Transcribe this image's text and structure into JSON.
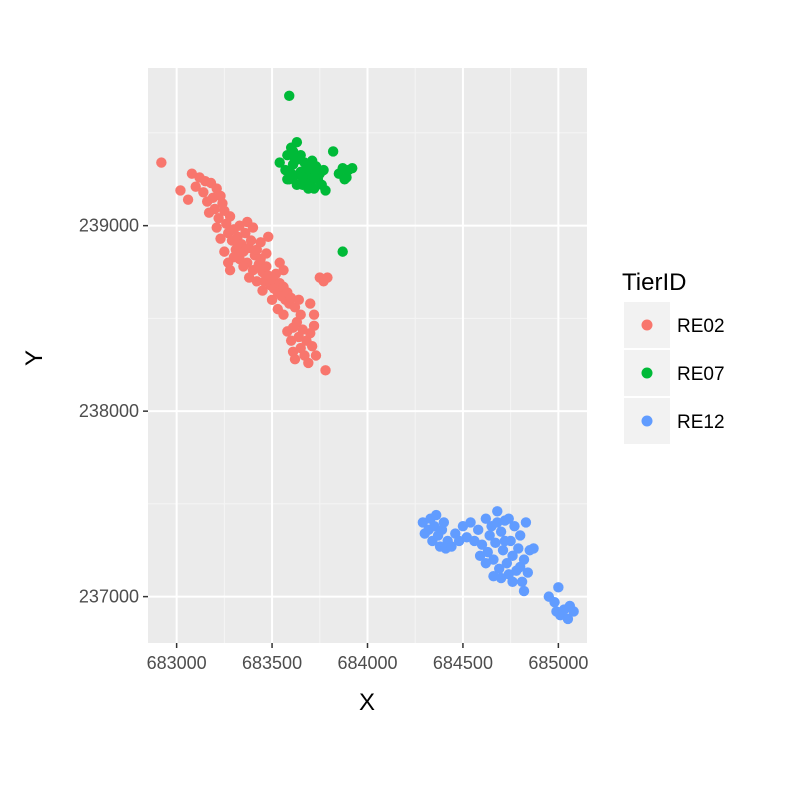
{
  "chart_data": {
    "type": "scatter",
    "title": "",
    "xlabel": "X",
    "ylabel": "Y",
    "xlim": [
      682850,
      685150
    ],
    "ylim": [
      236750,
      239850
    ],
    "x_ticks": [
      683000,
      683500,
      684000,
      684500,
      685000
    ],
    "x_tick_labels": [
      "683000",
      "683500",
      "684000",
      "684500",
      "685000"
    ],
    "y_ticks": [
      237000,
      238000,
      239000
    ],
    "y_tick_labels": [
      "237000",
      "238000",
      "239000"
    ],
    "grid": true,
    "legend": {
      "title": "TierID",
      "position": "right"
    },
    "series": [
      {
        "name": "RE02",
        "color": "#F8766D",
        "points": [
          [
            682920,
            239340
          ],
          [
            683020,
            239190
          ],
          [
            683060,
            239140
          ],
          [
            683080,
            239280
          ],
          [
            683100,
            239210
          ],
          [
            683120,
            239260
          ],
          [
            683140,
            239180
          ],
          [
            683150,
            239240
          ],
          [
            683160,
            239130
          ],
          [
            683170,
            239070
          ],
          [
            683180,
            239230
          ],
          [
            683190,
            239150
          ],
          [
            683200,
            239090
          ],
          [
            683210,
            239200
          ],
          [
            683220,
            239040
          ],
          [
            683230,
            239160
          ],
          [
            683240,
            239120
          ],
          [
            683250,
            239080
          ],
          [
            683260,
            239010
          ],
          [
            683270,
            238960
          ],
          [
            683280,
            239050
          ],
          [
            683290,
            238920
          ],
          [
            683300,
            238980
          ],
          [
            683310,
            238870
          ],
          [
            683320,
            238940
          ],
          [
            683330,
            238820
          ],
          [
            683340,
            238900
          ],
          [
            683350,
            238860
          ],
          [
            683360,
            238960
          ],
          [
            683370,
            238800
          ],
          [
            683380,
            238880
          ],
          [
            683390,
            238920
          ],
          [
            683400,
            238760
          ],
          [
            683410,
            238840
          ],
          [
            683420,
            238870
          ],
          [
            683430,
            238790
          ],
          [
            683440,
            238820
          ],
          [
            683450,
            238750
          ],
          [
            683460,
            238700
          ],
          [
            683470,
            238780
          ],
          [
            683480,
            238730
          ],
          [
            683490,
            238680
          ],
          [
            683500,
            238710
          ],
          [
            683510,
            238660
          ],
          [
            683520,
            238740
          ],
          [
            683530,
            238640
          ],
          [
            683540,
            238690
          ],
          [
            683550,
            238620
          ],
          [
            683560,
            238670
          ],
          [
            683570,
            238600
          ],
          [
            683580,
            238640
          ],
          [
            683590,
            238580
          ],
          [
            683600,
            238610
          ],
          [
            683620,
            238560
          ],
          [
            683640,
            238600
          ],
          [
            683650,
            238520
          ],
          [
            683280,
            238760
          ],
          [
            683300,
            238830
          ],
          [
            683320,
            238900
          ],
          [
            683350,
            238780
          ],
          [
            683380,
            238720
          ],
          [
            683420,
            238700
          ],
          [
            683450,
            238650
          ],
          [
            683500,
            238600
          ],
          [
            683250,
            238860
          ],
          [
            683270,
            238800
          ],
          [
            683230,
            238930
          ],
          [
            683210,
            238990
          ],
          [
            683440,
            238910
          ],
          [
            683470,
            238850
          ],
          [
            683370,
            239020
          ],
          [
            683400,
            238990
          ],
          [
            683530,
            238550
          ],
          [
            683560,
            238520
          ],
          [
            683580,
            238430
          ],
          [
            683600,
            238380
          ],
          [
            683610,
            238320
          ],
          [
            683620,
            238280
          ],
          [
            683640,
            238400
          ],
          [
            683650,
            238340
          ],
          [
            683660,
            238440
          ],
          [
            683670,
            238300
          ],
          [
            683680,
            238380
          ],
          [
            683700,
            238420
          ],
          [
            683710,
            238350
          ],
          [
            683720,
            238460
          ],
          [
            683730,
            238300
          ],
          [
            683690,
            238260
          ],
          [
            683630,
            238480
          ],
          [
            683610,
            238450
          ],
          [
            683720,
            238520
          ],
          [
            683700,
            238580
          ],
          [
            683750,
            238720
          ],
          [
            683770,
            238700
          ],
          [
            683790,
            238720
          ],
          [
            683780,
            238220
          ],
          [
            683540,
            238800
          ],
          [
            683560,
            238760
          ],
          [
            683480,
            238940
          ],
          [
            683330,
            239000
          ]
        ]
      },
      {
        "name": "RE07",
        "color": "#00BA38",
        "points": [
          [
            683590,
            239700
          ],
          [
            683540,
            239340
          ],
          [
            683570,
            239300
          ],
          [
            683580,
            239380
          ],
          [
            683590,
            239250
          ],
          [
            683600,
            239420
          ],
          [
            683610,
            239330
          ],
          [
            683620,
            239270
          ],
          [
            683630,
            239450
          ],
          [
            683640,
            239360
          ],
          [
            683650,
            239290
          ],
          [
            683660,
            239220
          ],
          [
            683670,
            239340
          ],
          [
            683680,
            239260
          ],
          [
            683690,
            239310
          ],
          [
            683700,
            239230
          ],
          [
            683710,
            239290
          ],
          [
            683720,
            239200
          ],
          [
            683730,
            239320
          ],
          [
            683740,
            239250
          ],
          [
            683750,
            239280
          ],
          [
            683760,
            239220
          ],
          [
            683770,
            239300
          ],
          [
            683780,
            239190
          ],
          [
            683600,
            239280
          ],
          [
            683620,
            239350
          ],
          [
            683650,
            239380
          ],
          [
            683680,
            239330
          ],
          [
            683710,
            239350
          ],
          [
            683740,
            239300
          ],
          [
            683630,
            239220
          ],
          [
            683660,
            239260
          ],
          [
            683690,
            239200
          ],
          [
            683720,
            239260
          ],
          [
            683580,
            239250
          ],
          [
            683610,
            239400
          ],
          [
            683820,
            239400
          ],
          [
            683850,
            239280
          ],
          [
            683870,
            239310
          ],
          [
            683890,
            239260
          ],
          [
            683900,
            239300
          ],
          [
            683920,
            239310
          ],
          [
            683880,
            239250
          ],
          [
            683870,
            238860
          ]
        ]
      },
      {
        "name": "RE12",
        "color": "#619CFF",
        "points": [
          [
            684290,
            237400
          ],
          [
            684300,
            237340
          ],
          [
            684320,
            237360
          ],
          [
            684330,
            237420
          ],
          [
            684340,
            237300
          ],
          [
            684350,
            237380
          ],
          [
            684360,
            237440
          ],
          [
            684370,
            237330
          ],
          [
            684380,
            237270
          ],
          [
            684390,
            237360
          ],
          [
            684400,
            237400
          ],
          [
            684410,
            237260
          ],
          [
            684420,
            237300
          ],
          [
            684440,
            237270
          ],
          [
            684460,
            237340
          ],
          [
            684480,
            237300
          ],
          [
            684500,
            237380
          ],
          [
            684520,
            237320
          ],
          [
            684540,
            237400
          ],
          [
            684560,
            237300
          ],
          [
            684580,
            237360
          ],
          [
            684600,
            237280
          ],
          [
            684620,
            237420
          ],
          [
            684630,
            237240
          ],
          [
            684640,
            237330
          ],
          [
            684650,
            237380
          ],
          [
            684660,
            237200
          ],
          [
            684670,
            237290
          ],
          [
            684680,
            237460
          ],
          [
            684690,
            237150
          ],
          [
            684700,
            237350
          ],
          [
            684710,
            237250
          ],
          [
            684720,
            237410
          ],
          [
            684730,
            237180
          ],
          [
            684740,
            237120
          ],
          [
            684750,
            237300
          ],
          [
            684760,
            237220
          ],
          [
            684770,
            237380
          ],
          [
            684780,
            237140
          ],
          [
            684790,
            237260
          ],
          [
            684800,
            237330
          ],
          [
            684810,
            237080
          ],
          [
            684820,
            237200
          ],
          [
            684830,
            237400
          ],
          [
            684840,
            237130
          ],
          [
            684850,
            237250
          ],
          [
            684870,
            237260
          ],
          [
            684660,
            237110
          ],
          [
            684700,
            237100
          ],
          [
            684760,
            237080
          ],
          [
            684680,
            237400
          ],
          [
            684720,
            237300
          ],
          [
            684800,
            237160
          ],
          [
            684740,
            237420
          ],
          [
            684620,
            237180
          ],
          [
            684590,
            237220
          ],
          [
            684820,
            237030
          ],
          [
            684950,
            237000
          ],
          [
            684980,
            236970
          ],
          [
            685000,
            237050
          ],
          [
            685010,
            236900
          ],
          [
            685030,
            236930
          ],
          [
            685060,
            236950
          ],
          [
            685080,
            236920
          ],
          [
            685050,
            236880
          ],
          [
            684990,
            236920
          ]
        ]
      }
    ]
  }
}
